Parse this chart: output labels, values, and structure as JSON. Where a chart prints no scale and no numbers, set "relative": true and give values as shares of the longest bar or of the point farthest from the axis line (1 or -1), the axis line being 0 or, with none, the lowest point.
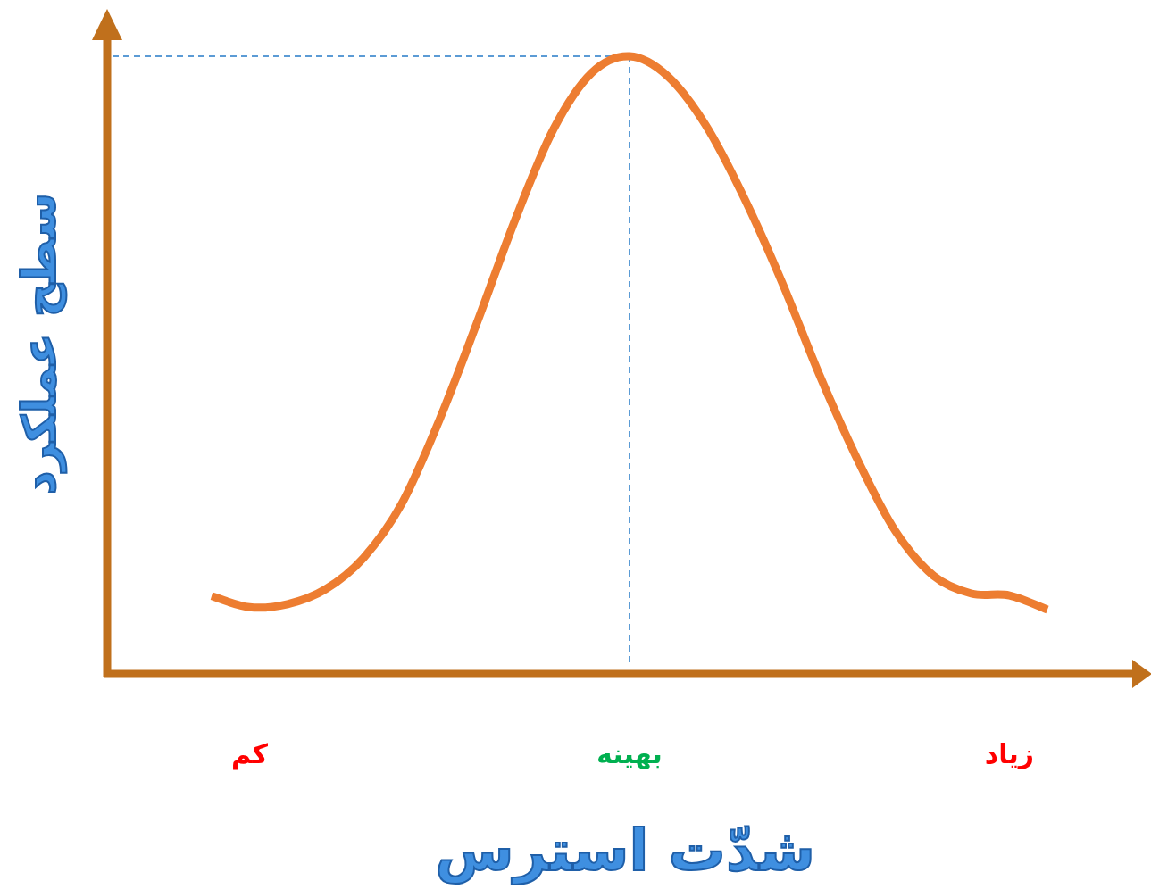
{
  "chart_data": {
    "type": "line",
    "relative": true,
    "xlabel": "شدّت استرس",
    "ylabel": "سطح عملکرد",
    "categories": [
      null,
      "کم",
      null,
      null,
      null,
      null,
      null,
      null,
      null,
      null,
      null,
      "بهینه",
      null,
      null,
      null,
      null,
      null,
      null,
      null,
      null,
      null,
      "زیاد",
      null
    ],
    "series": [
      {
        "color": "#ed7d31",
        "values": [
          0.126,
          0.108,
          0.113,
          0.137,
          0.188,
          0.275,
          0.412,
          0.571,
          0.737,
          0.882,
          0.973,
          1,
          0.968,
          0.889,
          0.773,
          0.636,
          0.484,
          0.347,
          0.231,
          0.159,
          0.13,
          0.127,
          0.104
        ]
      }
    ],
    "ref_lines": [
      {
        "axis": "x",
        "value": "بهینه",
        "color": "#5b9bd5",
        "line_style": "dashed"
      },
      {
        "axis": "y",
        "value": 1,
        "color": "#5b9bd5",
        "line_style": "dashed"
      }
    ],
    "grid": false,
    "marker": "none",
    "line_style": "solid"
  }
}
